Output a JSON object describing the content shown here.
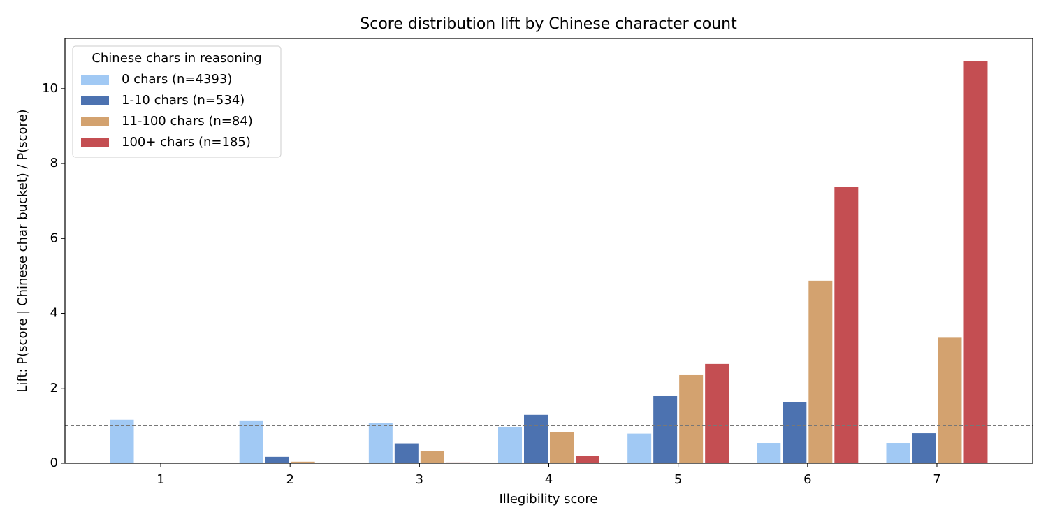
{
  "chart_data": {
    "type": "bar",
    "title": "Score distribution lift by Chinese character count",
    "x_label": "Illegibility score",
    "y_label": "Lift: P(score | Chinese char bucket) / P(score)",
    "categories": [
      "1",
      "2",
      "3",
      "4",
      "5",
      "6",
      "7"
    ],
    "legend_title": "Chinese chars in reasoning",
    "legend_position": "upper left",
    "series": [
      {
        "name": "0 chars (n=4393)",
        "color": "#a1c9f4",
        "values": [
          1.17,
          1.15,
          1.09,
          0.98,
          0.8,
          0.55,
          0.55
        ]
      },
      {
        "name": "1-10 chars (n=534)",
        "color": "#4c72b0",
        "values": [
          0,
          0.18,
          0.54,
          1.3,
          1.8,
          1.65,
          0.81
        ]
      },
      {
        "name": "11-100 chars (n=84)",
        "color": "#d3a26f",
        "values": [
          0,
          0.05,
          0.33,
          0.83,
          2.36,
          4.88,
          3.36
        ]
      },
      {
        "name": "100+ chars (n=185)",
        "color": "#c44e52",
        "values": [
          0,
          0,
          0.03,
          0.21,
          2.66,
          7.39,
          10.75
        ]
      }
    ],
    "reference_line": 1,
    "ylim": [
      0,
      11.34
    ],
    "yticks": [
      0,
      2,
      4,
      6,
      8,
      10
    ],
    "grid": false
  }
}
